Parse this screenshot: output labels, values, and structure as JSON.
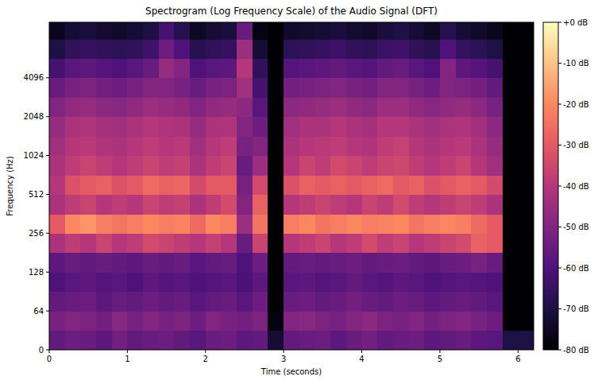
{
  "chart_data": {
    "type": "heatmap",
    "title": "Spectrogram (Log Frequency Scale) of the Audio Signal (DFT)",
    "x_label": "Time (seconds)",
    "y_label": "Frequency (Hz)",
    "log": "y",
    "xlim": [
      0,
      6.2
    ],
    "ylim": [
      0,
      11025
    ],
    "xticks": [
      0,
      1,
      2,
      3,
      4,
      5,
      6
    ],
    "yticks": [
      0,
      64,
      128,
      256,
      512,
      1024,
      2048,
      4096
    ],
    "x_bins": [
      0,
      0.2,
      0.4,
      0.6,
      0.8,
      1.0,
      1.2,
      1.4,
      1.6,
      1.8,
      2.0,
      2.2,
      2.4,
      2.6,
      2.8,
      3.0,
      3.2,
      3.4,
      3.6,
      3.8,
      4.0,
      4.2,
      4.4,
      4.6,
      4.8,
      5.0,
      5.2,
      5.4,
      5.6,
      5.8,
      6.0,
      6.2
    ],
    "y_bins": [
      0,
      32,
      64,
      91,
      128,
      181,
      256,
      362,
      512,
      724,
      1024,
      1448,
      2048,
      2896,
      4096,
      5793,
      8192,
      11025
    ],
    "cells": [
      [
        -56,
        -54,
        -55,
        -57,
        -53,
        -56,
        -55,
        -54,
        -56,
        -58,
        -55,
        -54,
        -57,
        -56,
        -72,
        -56,
        -55,
        -54,
        -57,
        -55,
        -53,
        -56,
        -55,
        -54,
        -57,
        -56,
        -55,
        -57,
        -58,
        -70,
        -70
      ],
      [
        -52,
        -50,
        -51,
        -53,
        -49,
        -52,
        -50,
        -52,
        -51,
        -54,
        -50,
        -52,
        -53,
        -51,
        -78,
        -50,
        -49,
        -51,
        -52,
        -50,
        -48,
        -51,
        -52,
        -50,
        -53,
        -51,
        -50,
        -52,
        -54,
        -80,
        -80
      ],
      [
        -56,
        -55,
        -54,
        -57,
        -55,
        -56,
        -54,
        -56,
        -55,
        -58,
        -56,
        -55,
        -58,
        -54,
        -80,
        -55,
        -54,
        -56,
        -55,
        -53,
        -55,
        -56,
        -54,
        -55,
        -57,
        -56,
        -55,
        -56,
        -58,
        -80,
        -80
      ],
      [
        -60,
        -58,
        -57,
        -59,
        -58,
        -60,
        -57,
        -59,
        -58,
        -60,
        -59,
        -58,
        -61,
        -57,
        -80,
        -58,
        -57,
        -59,
        -58,
        -56,
        -58,
        -59,
        -57,
        -58,
        -60,
        -59,
        -58,
        -59,
        -60,
        -80,
        -80
      ],
      [
        -57,
        -55,
        -56,
        -55,
        -56,
        -57,
        -55,
        -56,
        -55,
        -58,
        -56,
        -55,
        -60,
        -54,
        -80,
        -56,
        -55,
        -56,
        -55,
        -54,
        -56,
        -55,
        -54,
        -56,
        -57,
        -55,
        -54,
        -52,
        -55,
        -80,
        -80
      ],
      [
        -42,
        -38,
        -40,
        -36,
        -40,
        -38,
        -34,
        -36,
        -38,
        -40,
        -37,
        -40,
        -55,
        -36,
        -80,
        -40,
        -38,
        -36,
        -40,
        -38,
        -34,
        -38,
        -36,
        -40,
        -38,
        -36,
        -34,
        -28,
        -30,
        -80,
        -80
      ],
      [
        -30,
        -20,
        -18,
        -22,
        -24,
        -22,
        -20,
        -22,
        -21,
        -26,
        -20,
        -22,
        -45,
        -24,
        -80,
        -22,
        -20,
        -24,
        -22,
        -20,
        -22,
        -21,
        -20,
        -24,
        -22,
        -20,
        -22,
        -26,
        -30,
        -80,
        -80
      ],
      [
        -42,
        -38,
        -36,
        -40,
        -38,
        -40,
        -36,
        -38,
        -37,
        -42,
        -38,
        -34,
        -50,
        -28,
        -80,
        -40,
        -38,
        -36,
        -38,
        -40,
        -36,
        -38,
        -34,
        -38,
        -40,
        -38,
        -36,
        -38,
        -42,
        -80,
        -80
      ],
      [
        -40,
        -32,
        -30,
        -28,
        -32,
        -30,
        -26,
        -28,
        -27,
        -34,
        -30,
        -30,
        -52,
        -34,
        -80,
        -32,
        -28,
        -30,
        -28,
        -30,
        -28,
        -26,
        -30,
        -28,
        -32,
        -30,
        -28,
        -30,
        -34,
        -80,
        -80
      ],
      [
        -42,
        -38,
        -36,
        -38,
        -40,
        -38,
        -36,
        -38,
        -37,
        -42,
        -38,
        -36,
        -55,
        -45,
        -80,
        -40,
        -36,
        -38,
        -34,
        -36,
        -38,
        -36,
        -35,
        -38,
        -40,
        -38,
        -36,
        -40,
        -44,
        -80,
        -80
      ],
      [
        -44,
        -40,
        -39,
        -41,
        -42,
        -40,
        -38,
        -40,
        -39,
        -44,
        -40,
        -38,
        -52,
        -50,
        -80,
        -42,
        -40,
        -39,
        -38,
        -40,
        -41,
        -38,
        -37,
        -40,
        -42,
        -40,
        -39,
        -42,
        -46,
        -80,
        -80
      ],
      [
        -46,
        -42,
        -41,
        -43,
        -44,
        -42,
        -40,
        -41,
        -42,
        -46,
        -42,
        -41,
        -50,
        -54,
        -80,
        -44,
        -42,
        -42,
        -40,
        -42,
        -43,
        -40,
        -40,
        -42,
        -44,
        -42,
        -41,
        -44,
        -48,
        -80,
        -80
      ],
      [
        -50,
        -47,
        -46,
        -48,
        -49,
        -47,
        -45,
        -46,
        -47,
        -50,
        -47,
        -46,
        -48,
        -58,
        -80,
        -48,
        -47,
        -46,
        -45,
        -47,
        -48,
        -45,
        -45,
        -47,
        -49,
        -47,
        -46,
        -48,
        -52,
        -80,
        -80
      ],
      [
        -55,
        -52,
        -51,
        -53,
        -54,
        -52,
        -50,
        -50,
        -52,
        -55,
        -52,
        -51,
        -44,
        -62,
        -80,
        -53,
        -52,
        -51,
        -50,
        -52,
        -53,
        -50,
        -50,
        -52,
        -54,
        -50,
        -51,
        -53,
        -56,
        -80,
        -80
      ],
      [
        -62,
        -58,
        -57,
        -59,
        -60,
        -58,
        -55,
        -46,
        -50,
        -60,
        -58,
        -57,
        -40,
        -66,
        -80,
        -59,
        -58,
        -57,
        -56,
        -58,
        -59,
        -56,
        -55,
        -58,
        -60,
        -50,
        -57,
        -59,
        -62,
        -80,
        -80
      ],
      [
        -70,
        -66,
        -65,
        -66,
        -67,
        -66,
        -63,
        -54,
        -60,
        -68,
        -66,
        -65,
        -45,
        -72,
        -80,
        -67,
        -66,
        -65,
        -64,
        -66,
        -67,
        -64,
        -63,
        -66,
        -68,
        -60,
        -65,
        -67,
        -70,
        -80,
        -80
      ],
      [
        -76,
        -72,
        -71,
        -73,
        -74,
        -72,
        -70,
        -62,
        -68,
        -75,
        -72,
        -71,
        -55,
        -78,
        -80,
        -74,
        -73,
        -72,
        -71,
        -73,
        -74,
        -71,
        -70,
        -72,
        -75,
        -68,
        -72,
        -74,
        -76,
        -80,
        -80
      ]
    ],
    "colorbar": {
      "lim": [
        -80,
        0
      ],
      "ticks": [
        {
          "value": 0,
          "label": "+0 dB"
        },
        {
          "value": -10,
          "label": "-10 dB"
        },
        {
          "value": -20,
          "label": "-20 dB"
        },
        {
          "value": -30,
          "label": "-30 dB"
        },
        {
          "value": -40,
          "label": "-40 dB"
        },
        {
          "value": -50,
          "label": "-50 dB"
        },
        {
          "value": -60,
          "label": "-60 dB"
        },
        {
          "value": -70,
          "label": "-70 dB"
        },
        {
          "value": -80,
          "label": "-80 dB"
        }
      ]
    }
  }
}
